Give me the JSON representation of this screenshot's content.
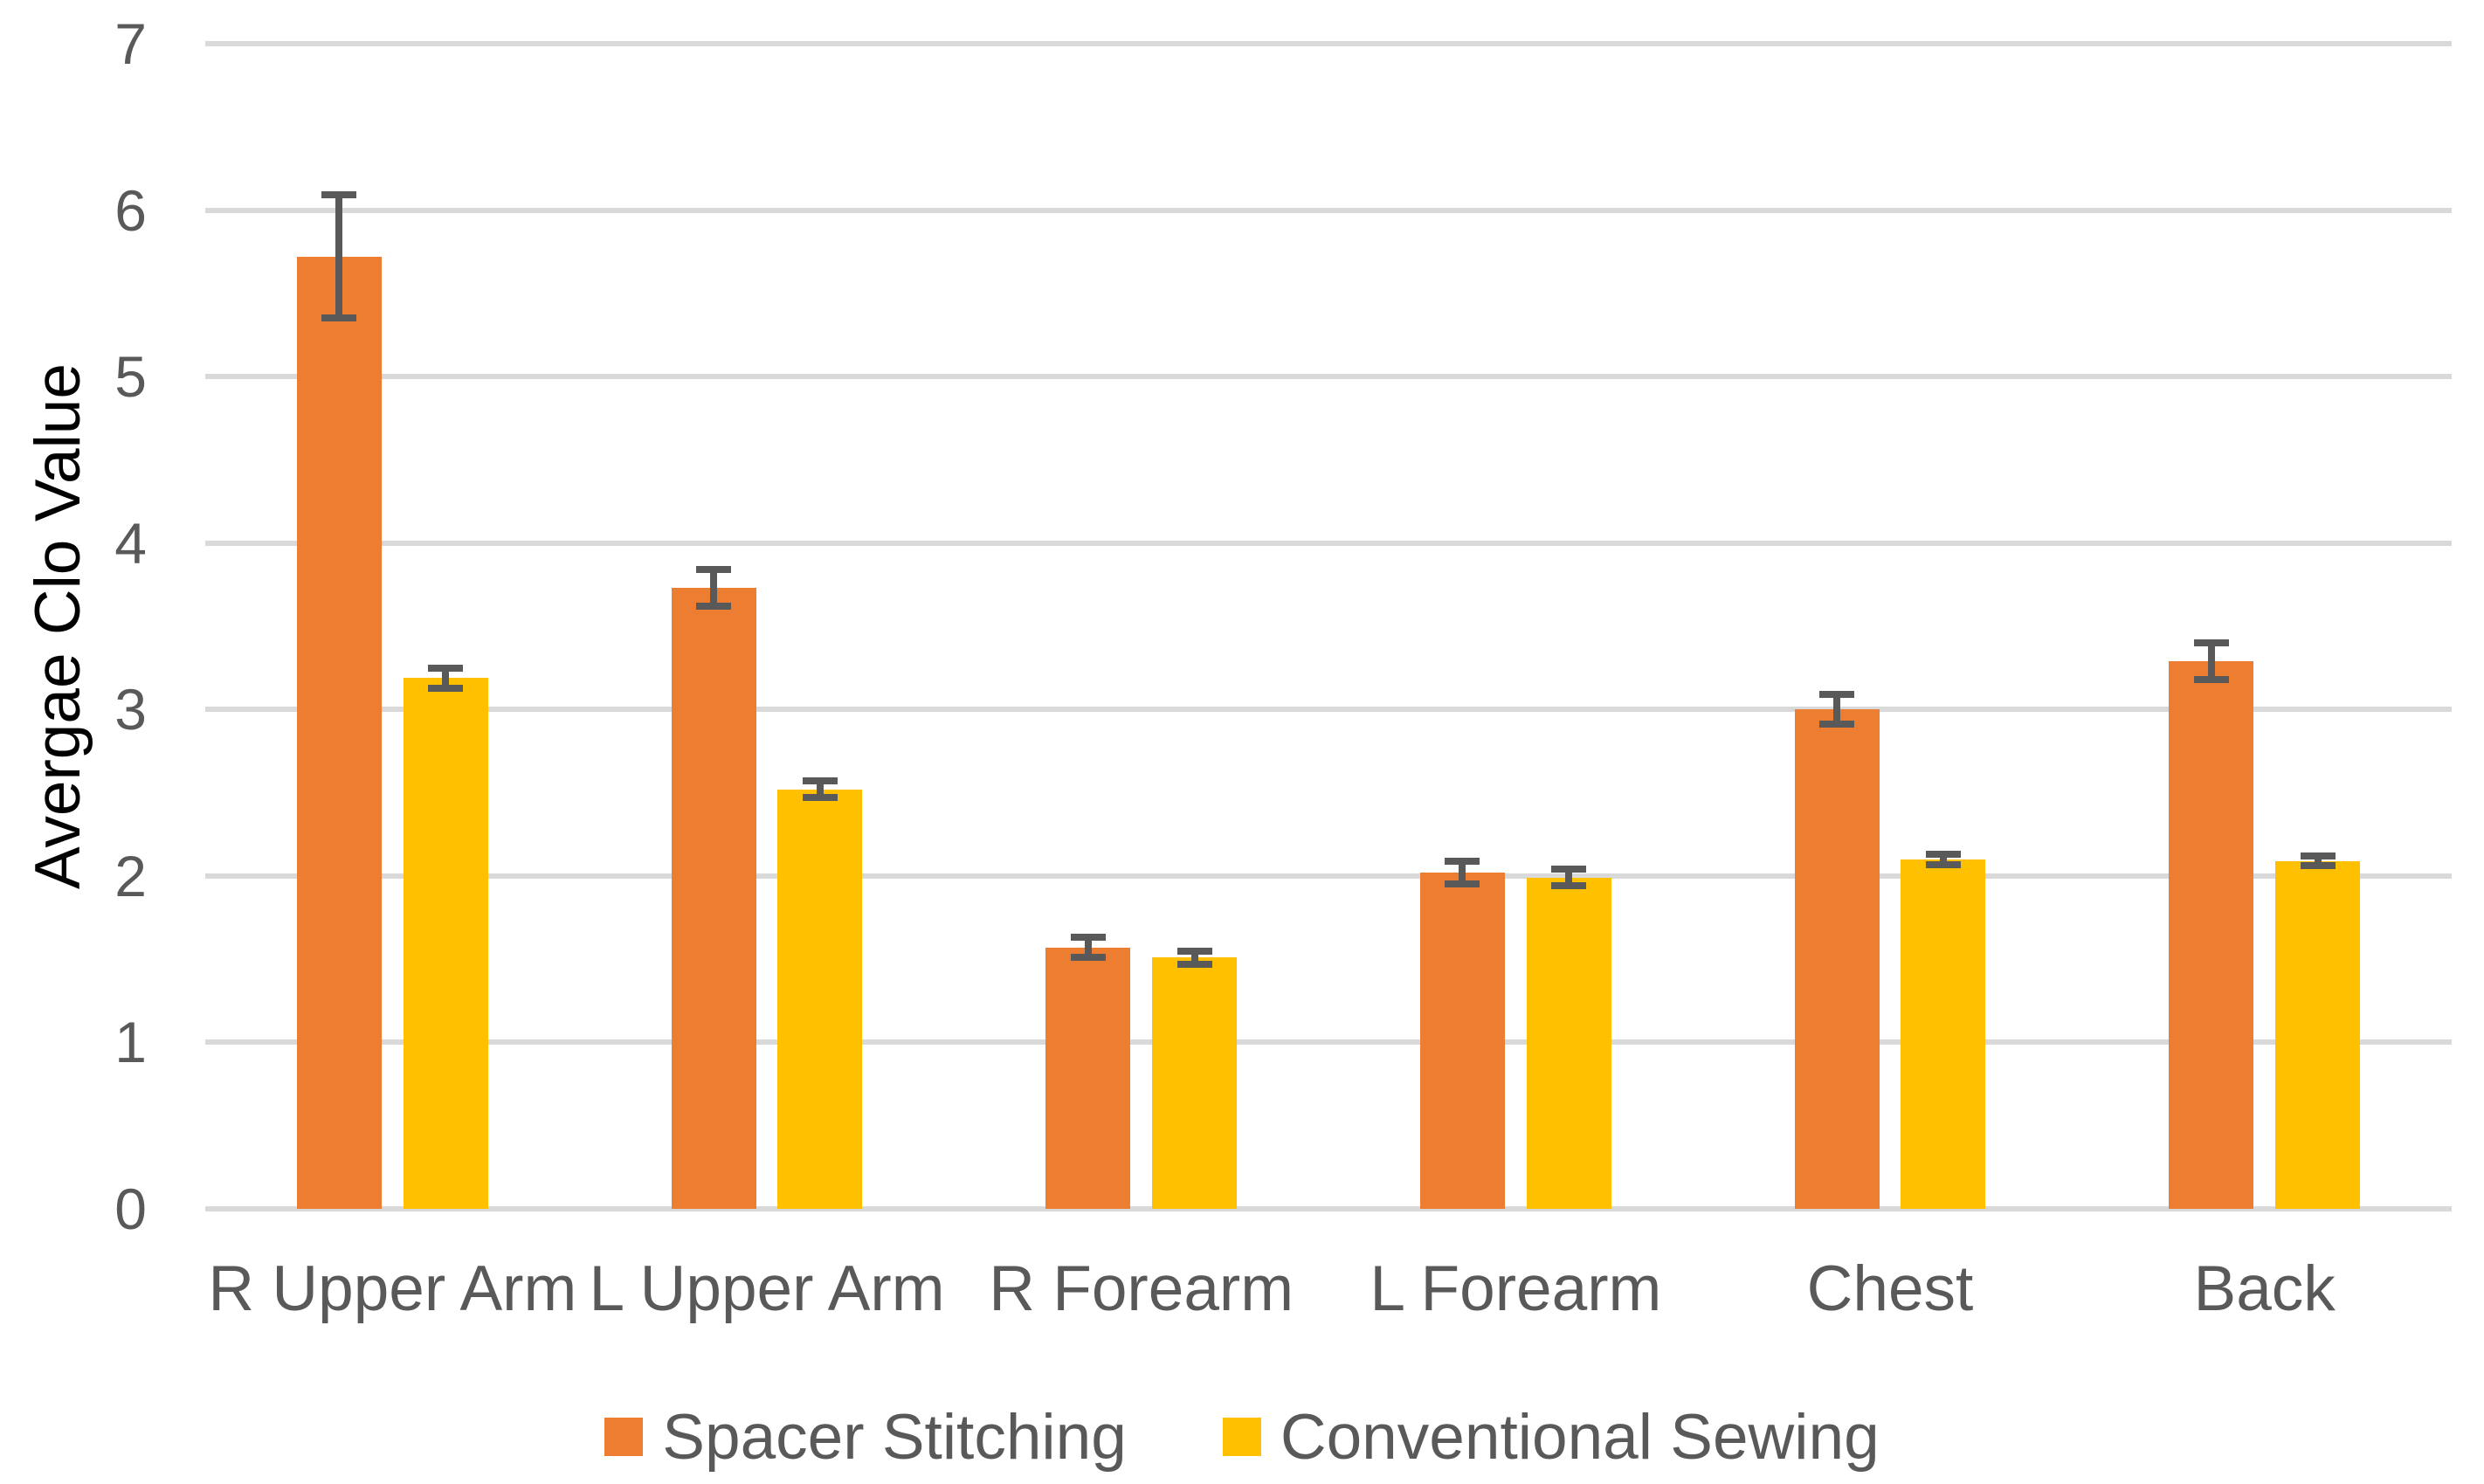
{
  "chart_data": {
    "type": "bar",
    "title": "",
    "xlabel": "",
    "ylabel": "Avergae Clo Value",
    "ylim": [
      0,
      7
    ],
    "yticks": [
      0,
      1,
      2,
      3,
      4,
      5,
      6,
      7
    ],
    "grid": true,
    "legend_position": "bottom",
    "categories": [
      "R Upper Arm",
      "L Upper Arm",
      "R Forearm",
      "L Forearm",
      "Chest",
      "Back"
    ],
    "series": [
      {
        "name": "Spacer Stitching",
        "color": "#ED7D31",
        "values": [
          5.72,
          3.73,
          1.57,
          2.02,
          3.0,
          3.29
        ],
        "error_bars": [
          0.37,
          0.11,
          0.06,
          0.07,
          0.09,
          0.11
        ]
      },
      {
        "name": "Conventional Sewing",
        "color": "#FFC000",
        "values": [
          3.19,
          2.52,
          1.51,
          1.99,
          2.1,
          2.09
        ],
        "error_bars": [
          0.06,
          0.05,
          0.04,
          0.05,
          0.03,
          0.03
        ]
      }
    ]
  },
  "colors": {
    "background": "#FFFFFF",
    "gridline": "#D9D9D9",
    "axis_text": "#595959",
    "error_bar": "#595959"
  }
}
